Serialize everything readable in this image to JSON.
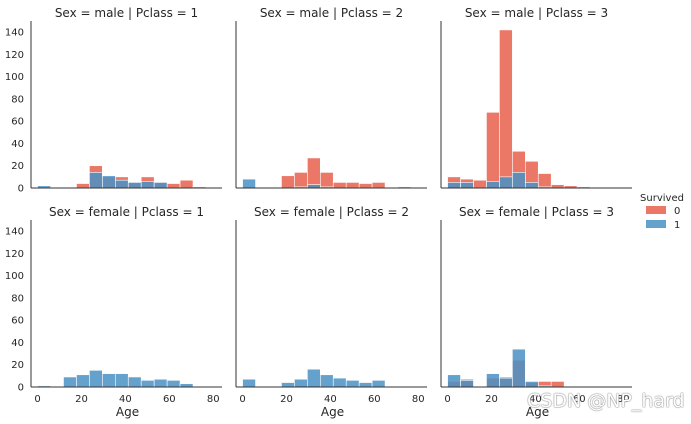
{
  "legend": {
    "title": "Survived",
    "labels": [
      "0",
      "1"
    ]
  },
  "colors": {
    "died": "#e8604c",
    "survived": "#4a90c4",
    "axis": "#333333",
    "text": "#262626"
  },
  "watermark": "CSDN @NP_hard",
  "chart_data": {
    "type": "histogram",
    "bin_start": 0,
    "bin_width": 5.9,
    "xlim": [
      -3,
      84
    ],
    "ylim": [
      0,
      150
    ],
    "xticks": [
      0,
      20,
      40,
      60,
      80
    ],
    "yticks": [
      0,
      20,
      40,
      60,
      80,
      100,
      120,
      140
    ],
    "xlabel": "Age",
    "ylabel": "",
    "facets": [
      {
        "title": "Sex = male | Pclass = 1",
        "died": [
          0,
          0,
          0,
          4,
          20,
          10,
          10,
          5,
          10,
          5,
          4,
          7,
          1,
          0
        ],
        "survived": [
          2,
          0,
          0,
          0,
          14,
          11,
          7,
          5,
          6,
          5,
          0,
          0,
          0,
          0
        ]
      },
      {
        "title": "Sex = male | Pclass = 2",
        "died": [
          1,
          0,
          0,
          11,
          14,
          27,
          14,
          5,
          5,
          4,
          5,
          0,
          1,
          0
        ],
        "survived": [
          8,
          0,
          0,
          0,
          1,
          3,
          1,
          0,
          0,
          0,
          0,
          0,
          0,
          0
        ]
      },
      {
        "title": "Sex = male | Pclass = 3",
        "died": [
          10,
          8,
          7,
          68,
          142,
          33,
          24,
          13,
          3,
          2,
          1,
          0,
          0,
          0
        ],
        "survived": [
          5,
          5,
          0,
          6,
          10,
          14,
          5,
          1,
          0,
          0,
          0,
          0,
          0,
          0
        ]
      },
      {
        "title": "Sex = female | Pclass = 1",
        "died": [
          1,
          0,
          0,
          0,
          0,
          0,
          0,
          0,
          0,
          0,
          0,
          0,
          0,
          0
        ],
        "survived": [
          1,
          0,
          9,
          11,
          15,
          12,
          12,
          9,
          6,
          7,
          6,
          3,
          0,
          0
        ]
      },
      {
        "title": "Sex = female | Pclass = 2",
        "died": [
          0,
          0,
          0,
          0,
          1,
          1,
          0,
          1,
          0,
          0,
          0,
          0,
          0,
          0
        ],
        "survived": [
          7,
          0,
          0,
          4,
          7,
          16,
          11,
          8,
          6,
          4,
          6,
          0,
          0,
          0
        ]
      },
      {
        "title": "Sex = female | Pclass = 3",
        "died": [
          5,
          7,
          0,
          8,
          9,
          24,
          4,
          5,
          5,
          0,
          0,
          0,
          0,
          0
        ],
        "survived": [
          11,
          6,
          0,
          12,
          8,
          34,
          5,
          1,
          0,
          0,
          0,
          0,
          0,
          0
        ]
      }
    ]
  }
}
